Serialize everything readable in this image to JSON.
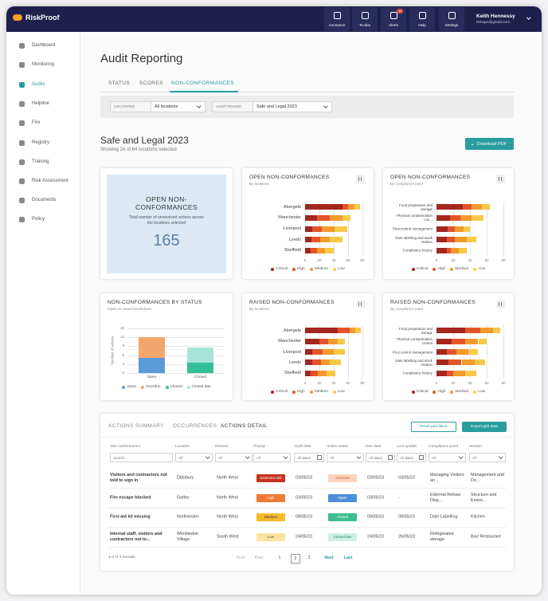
{
  "header": {
    "brand": "RiskProof",
    "nav": [
      "Announce",
      "To-dos",
      "Alerts",
      "Help",
      "Settings"
    ],
    "alert_count": 14,
    "user_name": "Keith Hennessy",
    "user_email": "khhaps@gmail.com"
  },
  "sidebar": [
    "Dashboard",
    "Monitoring",
    "Audits",
    "Helpline",
    "Fire",
    "Registry",
    "Training",
    "Risk Assessment",
    "Documents",
    "Policy"
  ],
  "page": {
    "title": "Audit Reporting",
    "tabs": [
      "STATUS",
      "SCORES",
      "NON-CONFORMANCES"
    ],
    "filters": [
      {
        "label": "LOCATIONS",
        "value": "All locations"
      },
      {
        "label": "AUDIT ROUND",
        "value": "Safe and Legal 2023"
      }
    ],
    "heading": "Safe and Legal 2023",
    "subheading": "Showing 24 of 64 locations selected",
    "download": "Download PDF"
  },
  "kpi": {
    "title": "OPEN NON-CONFORMANCES",
    "description": "Total number of unresolved actions across the locations selected",
    "value": 165
  },
  "chart_data": [
    {
      "type": "bar",
      "orientation": "horizontal",
      "stacked": true,
      "title": "OPEN NON-CONFORMANCES",
      "subtitle": "By locations",
      "grid": true,
      "categories": [
        "Abergele",
        "Manchester",
        "Liverpool",
        "Leeds",
        "Sheffield"
      ],
      "series": [
        {
          "name": "Critical",
          "color": "#a3271f",
          "values": [
            52,
            17,
            10,
            9,
            8
          ]
        },
        {
          "name": "High",
          "color": "#e4542a",
          "values": [
            8,
            17,
            13,
            12,
            9
          ]
        },
        {
          "name": "Medium",
          "color": "#f29a2e",
          "values": [
            9,
            18,
            18,
            13,
            11
          ]
        },
        {
          "name": "Low",
          "color": "#f7c948",
          "values": [
            8,
            11,
            18,
            18,
            12
          ]
        }
      ],
      "xlim": [
        0,
        80
      ],
      "xticks": [
        0,
        20,
        40,
        60,
        80
      ]
    },
    {
      "type": "bar",
      "orientation": "horizontal",
      "stacked": true,
      "title": "OPEN NON-CONFORMANCES",
      "subtitle": "By compliance point",
      "grid": true,
      "categories": [
        "Food preparation and storage",
        "Physical contamination con...",
        "Pest control management",
        "Date labelling and stock rotation",
        "Compliance history"
      ],
      "series": [
        {
          "name": "Critical",
          "color": "#a3271f",
          "values": [
            31,
            16,
            13,
            12,
            12
          ]
        },
        {
          "name": "High",
          "color": "#e4542a",
          "values": [
            11,
            13,
            9,
            10,
            5
          ]
        },
        {
          "name": "Medium",
          "color": "#f29a2e",
          "values": [
            12,
            13,
            10,
            14,
            10
          ]
        },
        {
          "name": "Low",
          "color": "#f7c948",
          "values": [
            10,
            14,
            8,
            12,
            9
          ]
        }
      ],
      "xlim": [
        0,
        80
      ],
      "xticks": [
        0,
        20,
        40,
        60,
        80
      ]
    },
    {
      "type": "bar",
      "orientation": "vertical",
      "stacked": true,
      "title": "NON-CONFORMANCES BY STATUS",
      "subtitle": "Open vs closed breakdown",
      "y_label": "Number of actions",
      "grid": true,
      "categories": [
        "Open",
        "Closed"
      ],
      "series": [
        {
          "name": "Open",
          "color": "#5b9ad8",
          "values": [
            5,
            0
          ]
        },
        {
          "name": "Overdue",
          "color": "#f4a56c",
          "values": [
            7,
            0
          ]
        },
        {
          "name": "Closed",
          "color": "#33bf97",
          "values": [
            0,
            3.5
          ]
        },
        {
          "name": "Closed late",
          "color": "#a8e4d6",
          "values": [
            0,
            5
          ]
        }
      ],
      "ylim": [
        0,
        15
      ],
      "yticks": [
        0,
        3,
        6,
        9,
        12,
        15
      ]
    },
    {
      "type": "bar",
      "orientation": "horizontal",
      "stacked": true,
      "title": "RAISED NON-CONFORMANCES",
      "subtitle": "By locations",
      "grid": true,
      "categories": [
        "Abergele",
        "Manchester",
        "Liverpool",
        "Leeds",
        "Sheffield"
      ],
      "series": [
        {
          "name": "Critical",
          "color": "#a3271f",
          "values": [
            46,
            20,
            10,
            10,
            8
          ]
        },
        {
          "name": "High",
          "color": "#e4542a",
          "values": [
            16,
            12,
            14,
            12,
            10
          ]
        },
        {
          "name": "Medium",
          "color": "#f29a2e",
          "values": [
            8,
            14,
            16,
            12,
            12
          ]
        },
        {
          "name": "Low",
          "color": "#f7c948",
          "values": [
            8,
            10,
            16,
            16,
            12
          ]
        }
      ],
      "xlim": [
        0,
        80
      ],
      "xticks": [
        0,
        20,
        40,
        60,
        80
      ]
    },
    {
      "type": "bar",
      "orientation": "horizontal",
      "stacked": true,
      "title": "RAISED NON-CONFORMANCES",
      "subtitle": "By compliance point",
      "grid": true,
      "categories": [
        "Food preparation and storage",
        "Physical contamination control",
        "Pest control management",
        "Date labelling and stock rotation",
        "Compliance history"
      ],
      "series": [
        {
          "name": "Critical",
          "color": "#a3271f",
          "values": [
            34,
            18,
            12,
            14,
            12
          ]
        },
        {
          "name": "High",
          "color": "#e4542a",
          "values": [
            18,
            16,
            12,
            16,
            8
          ]
        },
        {
          "name": "Medium",
          "color": "#f29a2e",
          "values": [
            16,
            16,
            14,
            16,
            14
          ]
        },
        {
          "name": "Low",
          "color": "#f7c948",
          "values": [
            8,
            10,
            12,
            12,
            14
          ]
        }
      ],
      "xlim": [
        0,
        80
      ],
      "xticks": [
        0,
        20,
        40,
        60,
        80
      ]
    }
  ],
  "table": {
    "tabs": [
      "ACTIONS SUMMARY",
      "OCCURRENCES",
      "ACTIONS DETAIL"
    ],
    "buttons": [
      "Reset grid filters",
      "Export grid data"
    ],
    "columns": [
      "Non-conformance",
      "Location",
      "Division",
      "Priority",
      "Audit date",
      "Action status",
      "Due date",
      "Last update",
      "Compliance point",
      "Section"
    ],
    "filters": [
      "Search...",
      "All",
      "All",
      "All",
      "All dates",
      "All",
      "All dates",
      "All dates",
      "All",
      "All"
    ],
    "rows": [
      [
        "Visitors and contractors not told to sign in",
        "Didsbury",
        "North West",
        "Imminent risk",
        "03/05/23",
        "Overdue",
        "03/05/23",
        "03/05/23",
        "Managing Visitors an...",
        "Management and Do..."
      ],
      [
        "Fire escape blocked",
        "Gatley",
        "North West",
        "High",
        "03/05/23",
        "Open",
        "03/05/23",
        "-",
        "External Refuse Disp...",
        "Structure and Enviro..."
      ],
      [
        "First aid kit missing",
        "Northenden",
        "North West",
        "Medium",
        "09/05/23",
        "Closed",
        "09/05/23",
        "09/05/23",
        "Date Labelling",
        "Kitchen"
      ],
      [
        "Internal staff, visitors and contractors not to...",
        "Wimbledon Village",
        "South West",
        "Low",
        "24/05/23",
        "Closed late",
        "24/05/23",
        "26/05/23",
        "Refrigerated storage",
        "Bar/ Restaurant"
      ]
    ],
    "record_count": "1-4 of 4 records",
    "pagination": [
      "First",
      "Prev",
      1,
      2,
      3,
      "Next",
      "Last"
    ]
  }
}
